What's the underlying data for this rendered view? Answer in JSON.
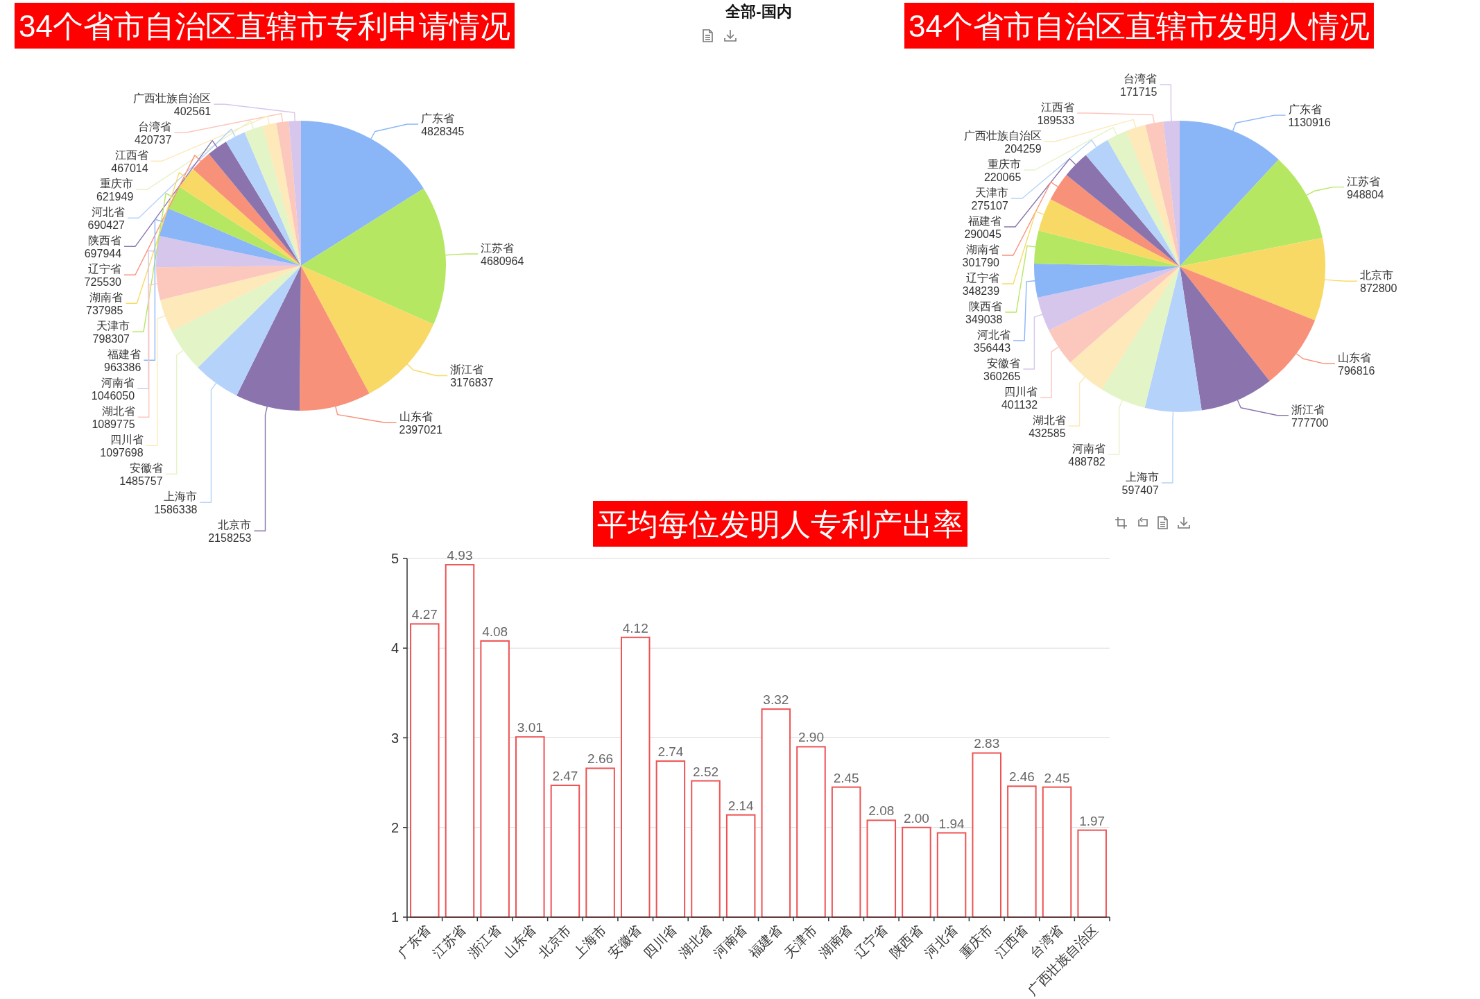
{
  "chart_data": [
    {
      "type": "pie",
      "title": "34个省市自治区直辖市专利申请情况",
      "categories": [
        "广东省",
        "江苏省",
        "浙江省",
        "山东省",
        "北京市",
        "上海市",
        "安徽省",
        "四川省",
        "湖北省",
        "河南省",
        "福建省",
        "天津市",
        "湖南省",
        "辽宁省",
        "陕西省",
        "河北省",
        "重庆市",
        "江西省",
        "台湾省",
        "广西壮族自治区"
      ],
      "values": [
        4828345,
        4680964,
        3176837,
        2397021,
        2158253,
        1586338,
        1485757,
        1097698,
        1089775,
        1046050,
        963386,
        798307,
        737985,
        725530,
        697944,
        690427,
        621949,
        467014,
        420737,
        402561
      ],
      "colors": [
        "#8ab6f8",
        "#b6e763",
        "#f9d966",
        "#f8917a",
        "#8b74ad",
        "#b5d3fa",
        "#e3f4c6",
        "#fde9b9",
        "#fcc7bd",
        "#d6c6ec",
        "#8ab6f8",
        "#b6e763",
        "#f9d966",
        "#f8917a",
        "#8b74ad",
        "#b5d3fa",
        "#e3f4c6",
        "#fde9b9",
        "#fcc7bd",
        "#d6c6ec"
      ],
      "data_labels": true
    },
    {
      "type": "other",
      "title": "全部-国内"
    },
    {
      "type": "pie",
      "title": "34个省市自治区直辖市发明人情况",
      "categories": [
        "广东省",
        "江苏省",
        "北京市",
        "山东省",
        "浙江省",
        "上海市",
        "河南省",
        "湖北省",
        "四川省",
        "安徽省",
        "河北省",
        "陕西省",
        "辽宁省",
        "湖南省",
        "福建省",
        "天津市",
        "重庆市",
        "广西壮族自治区",
        "江西省",
        "台湾省"
      ],
      "values": [
        1130916,
        948804,
        872800,
        796816,
        777700,
        597407,
        488782,
        432585,
        401132,
        360265,
        356443,
        349038,
        348239,
        301790,
        290045,
        275107,
        220065,
        204259,
        189533,
        171715
      ],
      "colors": [
        "#8ab6f8",
        "#b6e763",
        "#f9d966",
        "#f8917a",
        "#8b74ad",
        "#b5d3fa",
        "#e3f4c6",
        "#fde9b9",
        "#fcc7bd",
        "#d6c6ec",
        "#8ab6f8",
        "#b6e763",
        "#f9d966",
        "#f8917a",
        "#8b74ad",
        "#b5d3fa",
        "#e3f4c6",
        "#fde9b9",
        "#fcc7bd",
        "#d6c6ec"
      ],
      "data_labels": true
    },
    {
      "type": "bar",
      "title": "平均每位发明人专利产出率",
      "categories": [
        "广东省",
        "江苏省",
        "浙江省",
        "山东省",
        "北京市",
        "上海市",
        "安徽省",
        "四川省",
        "湖北省",
        "河南省",
        "福建省",
        "天津市",
        "湖南省",
        "辽宁省",
        "陕西省",
        "河北省",
        "重庆市",
        "江西省",
        "台湾省",
        "广西壮族自治区"
      ],
      "values": [
        4.27,
        4.93,
        4.08,
        3.01,
        2.47,
        2.66,
        4.12,
        2.74,
        2.52,
        2.14,
        3.32,
        2.9,
        2.45,
        2.08,
        2,
        1.94,
        2.83,
        2.46,
        2.45,
        1.97
      ],
      "value_labels": [
        "4.27",
        "4.93",
        "4.08",
        "3.01",
        "2.47",
        "2.66",
        "4.12",
        "2.74",
        "2.52",
        "2.14",
        "3.32",
        "2.90",
        "2.45",
        "2.08",
        "2.00",
        "1.94",
        "2.83",
        "2.46",
        "2.45",
        "1.97"
      ],
      "color": "#ee5253",
      "ylim": [
        1,
        5
      ],
      "yticks": [
        1,
        2,
        3,
        4,
        5
      ],
      "grid": "y"
    }
  ]
}
